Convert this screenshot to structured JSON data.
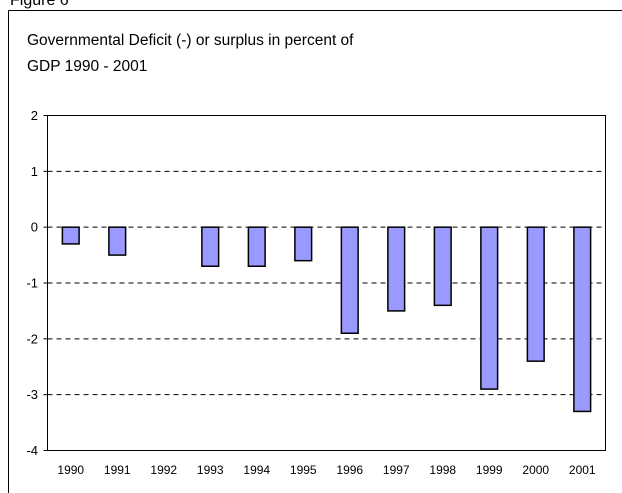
{
  "chart_data": {
    "type": "bar",
    "figure_label": "Figure 6",
    "title": [
      "Governmental Deficit (-) or surplus in percent of",
      "GDP 1990 - 2001"
    ],
    "categories": [
      "1990",
      "1991",
      "1992",
      "1993",
      "1994",
      "1995",
      "1996",
      "1997",
      "1998",
      "1999",
      "2000",
      "2001"
    ],
    "values": [
      -0.3,
      -0.5,
      0,
      -0.7,
      -0.7,
      -0.6,
      -1.9,
      -1.5,
      -1.4,
      -2.9,
      -2.4,
      -3.3
    ],
    "color": "#9999ff",
    "ylim": [
      -4,
      2
    ],
    "yticks": [
      -4,
      -3,
      -2,
      -1,
      0,
      1,
      2
    ],
    "grid": true
  }
}
